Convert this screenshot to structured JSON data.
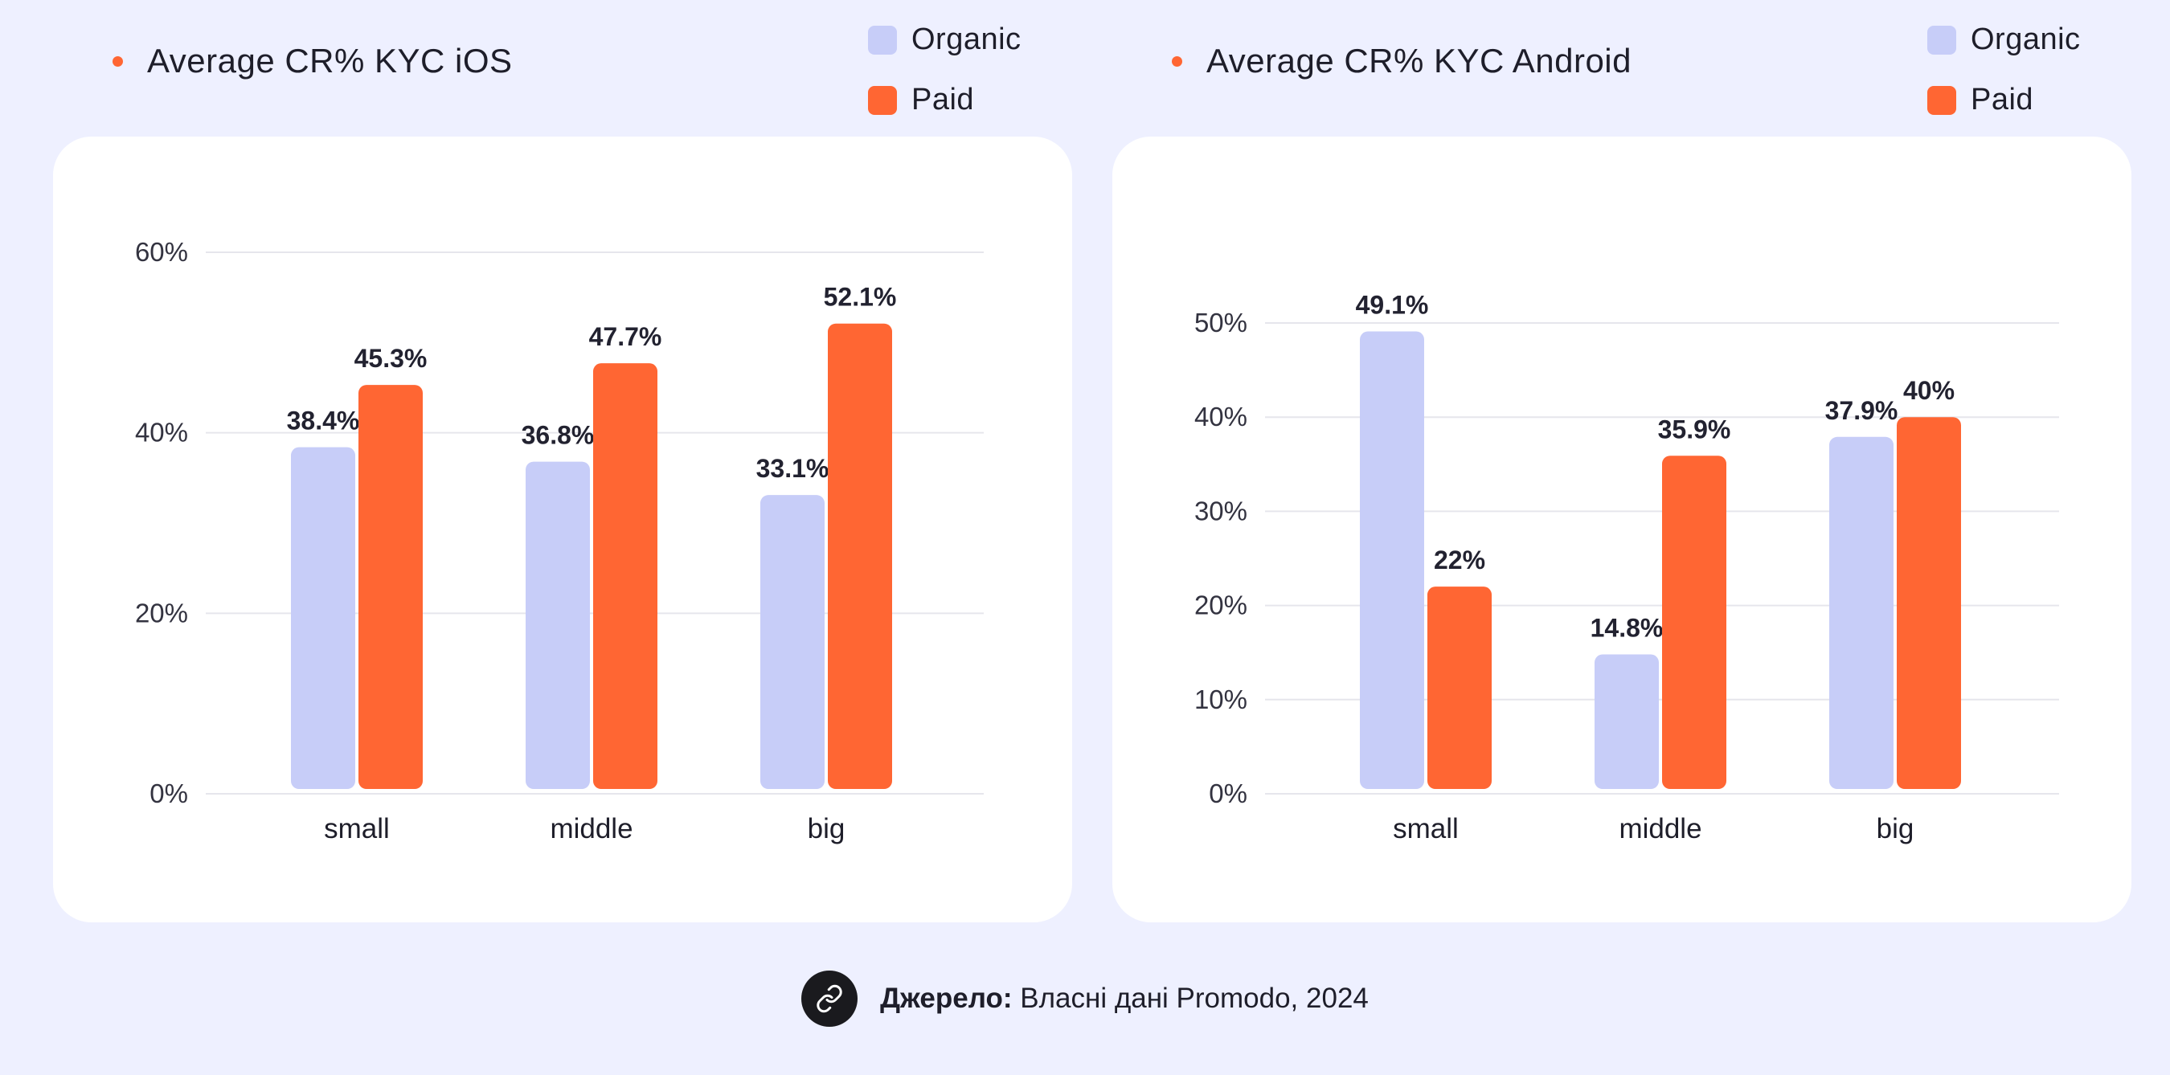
{
  "colors": {
    "organic": "#C7CDF8",
    "paid": "#FF6633",
    "bullet": "#FF6633",
    "grid": "#E6E6EC"
  },
  "legend": {
    "organic_label": "Organic",
    "paid_label": "Paid"
  },
  "chart_data": [
    {
      "type": "bar",
      "title": "Average CR% KYC iOS",
      "categories": [
        "small",
        "middle",
        "big"
      ],
      "series": [
        {
          "name": "Organic",
          "values": [
            38.4,
            36.8,
            33.1
          ]
        },
        {
          "name": "Paid",
          "values": [
            45.3,
            47.7,
            52.1
          ]
        }
      ],
      "value_labels": {
        "Organic": [
          "38.4%",
          "36.8%",
          "33.1%"
        ],
        "Paid": [
          "45.3%",
          "47.7%",
          "52.1%"
        ]
      },
      "yticks": [
        0,
        20,
        40,
        60
      ],
      "ytick_labels": [
        "0%",
        "20%",
        "40%",
        "60%"
      ],
      "ylim": [
        0,
        60
      ],
      "grid": true,
      "legend_position": "top-right"
    },
    {
      "type": "bar",
      "title": "Average CR% KYC Android",
      "categories": [
        "small",
        "middle",
        "big"
      ],
      "series": [
        {
          "name": "Organic",
          "values": [
            49.1,
            14.8,
            37.9
          ]
        },
        {
          "name": "Paid",
          "values": [
            22,
            35.9,
            40
          ]
        }
      ],
      "value_labels": {
        "Organic": [
          "49.1%",
          "14.8%",
          "37.9%"
        ],
        "Paid": [
          "22%",
          "35.9%",
          "40%"
        ]
      },
      "yticks": [
        0,
        10,
        20,
        30,
        40,
        50
      ],
      "ytick_labels": [
        "0%",
        "10%",
        "20%",
        "30%",
        "40%",
        "50%"
      ],
      "ylim": [
        0,
        50
      ],
      "grid": true,
      "legend_position": "top-right"
    }
  ],
  "footer": {
    "icon": "link-icon",
    "source_label": "Джерело:",
    "source_text": "Власні дані Promodo, 2024"
  }
}
